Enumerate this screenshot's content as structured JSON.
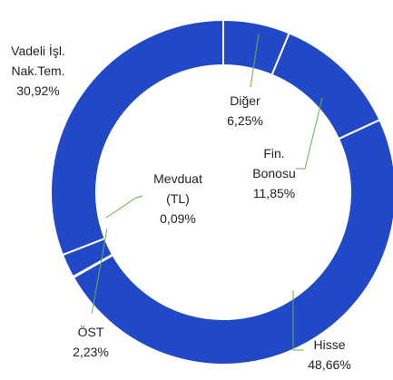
{
  "chart_data": {
    "type": "donut",
    "categories": [
      [
        "Diğer"
      ],
      [
        "Fin.",
        "Bonosu"
      ],
      [
        "Hisse"
      ],
      [
        "Mevduat",
        "(TL)"
      ],
      [
        "ÖST"
      ],
      [
        "Vadeli İşl.",
        "Nak.Tem."
      ]
    ],
    "values": [
      6.25,
      11.85,
      48.66,
      0.09,
      2.23,
      30.92
    ],
    "value_labels": [
      "6,25%",
      "11,85%",
      "48,66%",
      "0,09%",
      "2,23%",
      "30,92%"
    ],
    "color": "#2148c6"
  }
}
